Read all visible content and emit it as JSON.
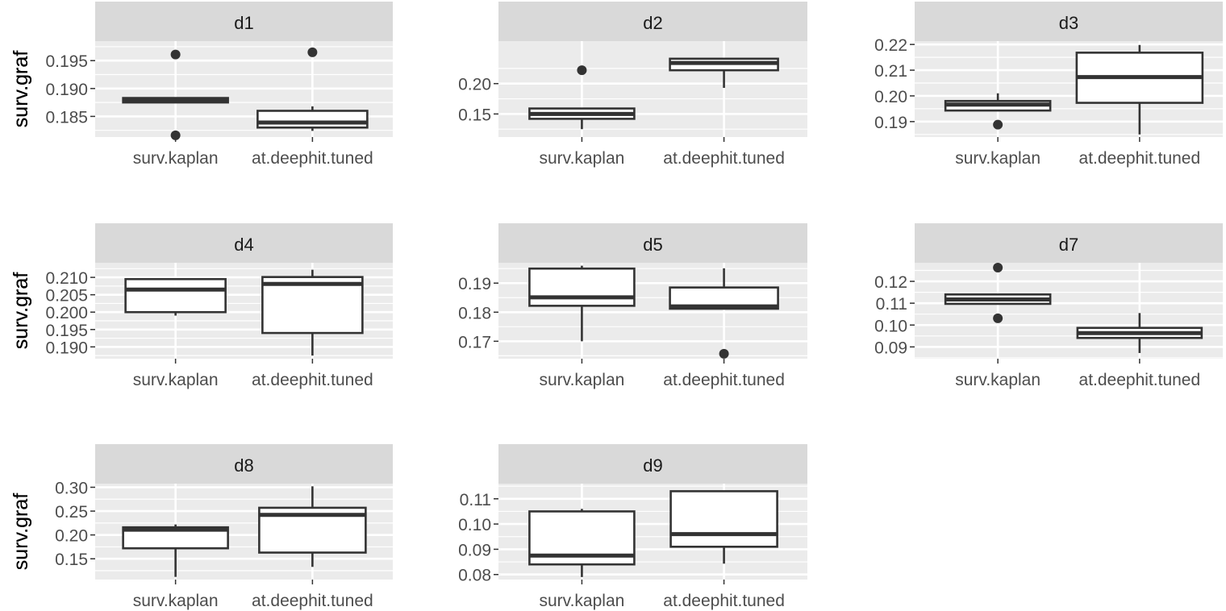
{
  "chart_data": [
    {
      "type": "box",
      "panel": "d1",
      "ylabel": "surv.graf",
      "categories": [
        "surv.kaplan",
        "at.deephit.tuned"
      ],
      "yticks": [
        0.185,
        0.19,
        0.195
      ],
      "ytick_labels": [
        "0.185",
        "0.190",
        "0.195"
      ],
      "ylim": [
        0.1813,
        0.1985
      ],
      "boxes": [
        {
          "category": "surv.kaplan",
          "whisker_low": 0.1875,
          "q1": 0.1875,
          "median": 0.188,
          "q3": 0.1883,
          "whisker_high": 0.1883,
          "outliers": [
            0.1961,
            0.1816
          ]
        },
        {
          "category": "at.deephit.tuned",
          "whisker_low": 0.1824,
          "q1": 0.183,
          "median": 0.1839,
          "q3": 0.186,
          "whisker_high": 0.1868,
          "outliers": [
            0.1965
          ]
        }
      ]
    },
    {
      "type": "box",
      "panel": "d2",
      "ylabel": "surv.graf",
      "categories": [
        "surv.kaplan",
        "at.deephit.tuned"
      ],
      "yticks": [
        0.15,
        0.2
      ],
      "ytick_labels": [
        "0.15",
        "0.20"
      ],
      "ylim": [
        0.112,
        0.27
      ],
      "boxes": [
        {
          "category": "surv.kaplan",
          "whisker_low": 0.125,
          "q1": 0.142,
          "median": 0.15,
          "q3": 0.159,
          "whisker_high": 0.159,
          "outliers": [
            0.222
          ]
        },
        {
          "category": "at.deephit.tuned",
          "whisker_low": 0.193,
          "q1": 0.222,
          "median": 0.234,
          "q3": 0.241,
          "whisker_high": 0.241,
          "outliers": []
        }
      ]
    },
    {
      "type": "box",
      "panel": "d3",
      "ylabel": "surv.graf",
      "categories": [
        "surv.kaplan",
        "at.deephit.tuned"
      ],
      "yticks": [
        0.19,
        0.2,
        0.21,
        0.22
      ],
      "ytick_labels": [
        "0.19",
        "0.20",
        "0.21",
        "0.22"
      ],
      "ylim": [
        0.184,
        0.2213
      ],
      "boxes": [
        {
          "category": "surv.kaplan",
          "whisker_low": 0.1943,
          "q1": 0.1943,
          "median": 0.1966,
          "q3": 0.198,
          "whisker_high": 0.201,
          "outliers": [
            0.1888
          ]
        },
        {
          "category": "at.deephit.tuned",
          "whisker_low": 0.185,
          "q1": 0.1973,
          "median": 0.2073,
          "q3": 0.2168,
          "whisker_high": 0.2198,
          "outliers": []
        }
      ]
    },
    {
      "type": "box",
      "panel": "d4",
      "ylabel": "surv.graf",
      "categories": [
        "surv.kaplan",
        "at.deephit.tuned"
      ],
      "yticks": [
        0.19,
        0.195,
        0.2,
        0.205,
        0.21
      ],
      "ytick_labels": [
        "0.190",
        "0.195",
        "0.200",
        "0.205",
        "0.210"
      ],
      "ylim": [
        0.1866,
        0.2142
      ],
      "boxes": [
        {
          "category": "surv.kaplan",
          "whisker_low": 0.199,
          "q1": 0.2,
          "median": 0.2065,
          "q3": 0.2095,
          "whisker_high": 0.2095,
          "outliers": []
        },
        {
          "category": "at.deephit.tuned",
          "whisker_low": 0.1875,
          "q1": 0.194,
          "median": 0.2081,
          "q3": 0.2101,
          "whisker_high": 0.2122,
          "outliers": []
        }
      ]
    },
    {
      "type": "box",
      "panel": "d5",
      "ylabel": "surv.graf",
      "categories": [
        "surv.kaplan",
        "at.deephit.tuned"
      ],
      "yticks": [
        0.17,
        0.18,
        0.19
      ],
      "ytick_labels": [
        "0.17",
        "0.18",
        "0.19"
      ],
      "ylim": [
        0.164,
        0.197
      ],
      "boxes": [
        {
          "category": "surv.kaplan",
          "whisker_low": 0.17,
          "q1": 0.1822,
          "median": 0.1851,
          "q3": 0.195,
          "whisker_high": 0.196,
          "outliers": []
        },
        {
          "category": "at.deephit.tuned",
          "whisker_low": 0.1812,
          "q1": 0.1812,
          "median": 0.182,
          "q3": 0.1885,
          "whisker_high": 0.1951,
          "outliers": [
            0.1657
          ]
        }
      ]
    },
    {
      "type": "box",
      "panel": "d7",
      "ylabel": "surv.graf",
      "categories": [
        "surv.kaplan",
        "at.deephit.tuned"
      ],
      "yticks": [
        0.09,
        0.1,
        0.11,
        0.12
      ],
      "ytick_labels": [
        "0.09",
        "0.10",
        "0.11",
        "0.12"
      ],
      "ylim": [
        0.0846,
        0.1285
      ],
      "boxes": [
        {
          "category": "surv.kaplan",
          "whisker_low": 0.1097,
          "q1": 0.1097,
          "median": 0.1117,
          "q3": 0.114,
          "whisker_high": 0.114,
          "outliers": [
            0.1263,
            0.1031
          ]
        },
        {
          "category": "at.deephit.tuned",
          "whisker_low": 0.0872,
          "q1": 0.0941,
          "median": 0.0963,
          "q3": 0.0987,
          "whisker_high": 0.1055,
          "outliers": []
        }
      ]
    },
    {
      "type": "box",
      "panel": "d8",
      "ylabel": "surv.graf",
      "categories": [
        "surv.kaplan",
        "at.deephit.tuned"
      ],
      "yticks": [
        0.15,
        0.2,
        0.25,
        0.3
      ],
      "ytick_labels": [
        "0.15",
        "0.20",
        "0.25",
        "0.30"
      ],
      "ylim": [
        0.1064,
        0.3076
      ],
      "boxes": [
        {
          "category": "surv.kaplan",
          "whisker_low": 0.112,
          "q1": 0.172,
          "median": 0.211,
          "q3": 0.216,
          "whisker_high": 0.222,
          "outliers": []
        },
        {
          "category": "at.deephit.tuned",
          "whisker_low": 0.133,
          "q1": 0.163,
          "median": 0.242,
          "q3": 0.257,
          "whisker_high": 0.302,
          "outliers": []
        }
      ]
    },
    {
      "type": "box",
      "panel": "d9",
      "ylabel": "surv.graf",
      "categories": [
        "surv.kaplan",
        "at.deephit.tuned"
      ],
      "yticks": [
        0.08,
        0.09,
        0.1,
        0.11
      ],
      "ytick_labels": [
        "0.08",
        "0.09",
        "0.10",
        "0.11"
      ],
      "ylim": [
        0.078,
        0.116
      ],
      "boxes": [
        {
          "category": "surv.kaplan",
          "whisker_low": 0.079,
          "q1": 0.084,
          "median": 0.0875,
          "q3": 0.105,
          "whisker_high": 0.106,
          "outliers": []
        },
        {
          "category": "at.deephit.tuned",
          "whisker_low": 0.0843,
          "q1": 0.091,
          "median": 0.096,
          "q3": 0.113,
          "whisker_high": 0.113,
          "outliers": []
        }
      ]
    }
  ],
  "colors": {
    "panel_bg": "#ebebeb",
    "strip_bg": "#d9d9d9",
    "grid": "#ffffff",
    "box_stroke": "#333333",
    "box_fill": "#ffffff",
    "outlier": "#333333",
    "tick_text": "#4d4d4d",
    "strip_text": "#1a1a1a"
  }
}
